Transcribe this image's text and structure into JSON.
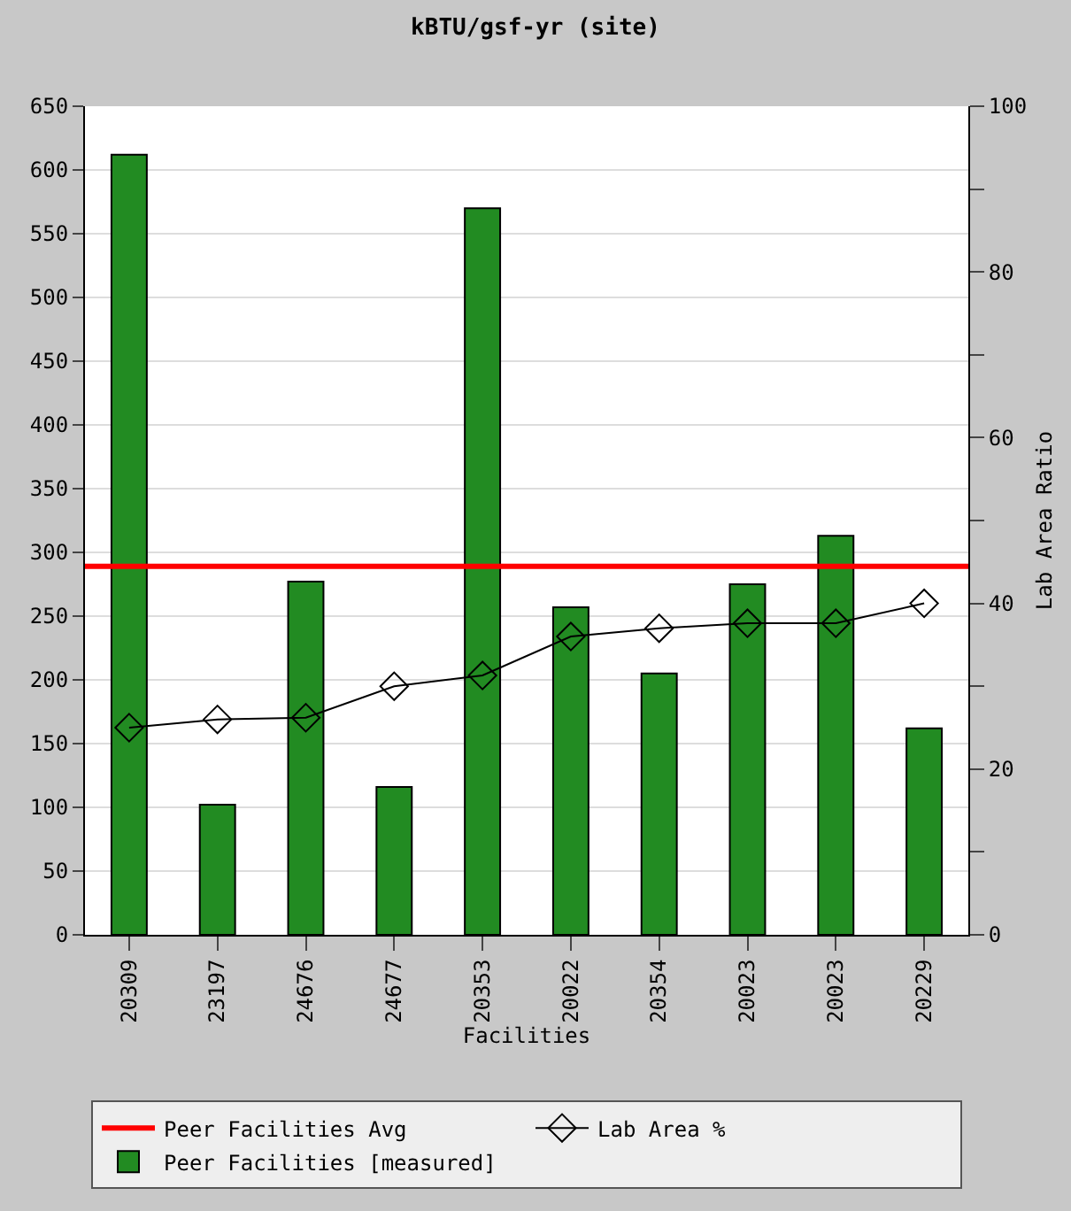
{
  "chart_data": {
    "type": "bar",
    "title": "kBTU/gsf-yr (site)",
    "xlabel": "Facilities",
    "y2label": "Lab Area Ratio",
    "categories": [
      "20309",
      "23197",
      "24676",
      "24677",
      "20353",
      "20022",
      "20354",
      "20023",
      "20023",
      "20229"
    ],
    "series": [
      {
        "name": "Peer Facilities [measured]",
        "color": "#228b22",
        "values": [
          612,
          102,
          277,
          116,
          570,
          257,
          205,
          275,
          313,
          162
        ]
      },
      {
        "name": "Lab Area %",
        "type": "line",
        "axis": "y2",
        "color": "#000000",
        "marker": "diamond",
        "values": [
          25,
          26,
          26.2,
          30,
          31.3,
          36,
          37,
          37.6,
          37.6,
          40
        ]
      }
    ],
    "ref_lines": [
      {
        "axis": "y",
        "value": 289,
        "label": "Peer Facilities Avg",
        "color": "#ff0000"
      }
    ],
    "ylim": [
      0,
      650
    ],
    "yticks": [
      0,
      50,
      100,
      150,
      200,
      250,
      300,
      350,
      400,
      450,
      500,
      550,
      600,
      650
    ],
    "y2lim": [
      0,
      100
    ],
    "y2ticks": [
      0,
      {
        "value": 10,
        "label": null
      },
      20,
      {
        "value": 30,
        "label": null
      },
      40,
      {
        "value": 50,
        "label": null
      },
      60,
      {
        "value": 70,
        "label": null
      },
      80,
      {
        "value": 90,
        "label": null
      },
      100
    ],
    "grid": "y",
    "legend": "bottom"
  }
}
